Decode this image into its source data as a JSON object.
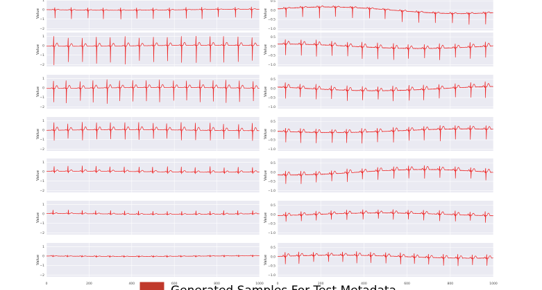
{
  "chart_data": {
    "type": "line",
    "description_layout": "14 stacked ECG-like line panels in 2 columns",
    "legend": {
      "label": "Generated Samples For Test Metadata",
      "color": "#c0392b",
      "placement": "bottom-center"
    },
    "line_color": "#ee2222",
    "grid": true,
    "left_column": {
      "ylabel": "Value",
      "xlim": [
        0,
        1000
      ],
      "x_ticks": [
        "0",
        "200",
        "400",
        "600",
        "800",
        "1000"
      ],
      "y_ticks": [
        "1",
        "0",
        "−1",
        "−2"
      ],
      "ylim": [
        -2.2,
        1.4
      ],
      "panels": [
        {
          "beats": 13,
          "r_amp": 0.25,
          "s_amp": -0.9,
          "t_amp": 0.05,
          "wander": 0.05
        },
        {
          "beats": 15,
          "r_amp": 0.95,
          "s_amp": -1.8,
          "t_amp": 0.3,
          "wander": 0.05
        },
        {
          "beats": 16,
          "r_amp": 0.8,
          "s_amp": -1.5,
          "t_amp": 0.3,
          "wander": 0.05
        },
        {
          "beats": 15,
          "r_amp": 0.75,
          "s_amp": -1.0,
          "t_amp": 0.3,
          "wander": 0.05
        },
        {
          "beats": 15,
          "r_amp": 0.55,
          "s_amp": -0.2,
          "t_amp": 0.15,
          "wander": 0.05
        },
        {
          "beats": 15,
          "r_amp": 0.35,
          "s_amp": -0.1,
          "t_amp": 0.08,
          "wander": 0.04
        },
        {
          "beats": 15,
          "r_amp": 0.08,
          "s_amp": -0.06,
          "t_amp": 0.03,
          "wander": 0.03
        }
      ]
    },
    "right_column": {
      "ylabel": "Value",
      "xlim": [
        0,
        1000
      ],
      "x_ticks": [
        "0",
        "200",
        "400",
        "600",
        "800",
        "1000"
      ],
      "y_ticks": [
        "0.5",
        "0.0",
        "−0.5",
        "−1.0"
      ],
      "ylim": [
        -1.1,
        0.75
      ],
      "panels": [
        {
          "beats": 13,
          "r_amp": 0.05,
          "s_amp": -0.55,
          "t_amp": 0.05,
          "wander": 0.18
        },
        {
          "beats": 14,
          "r_amp": 0.25,
          "s_amp": -0.6,
          "t_amp": 0.15,
          "wander": 0.12
        },
        {
          "beats": 14,
          "r_amp": 0.25,
          "s_amp": -0.55,
          "t_amp": 0.15,
          "wander": 0.12
        },
        {
          "beats": 14,
          "r_amp": 0.2,
          "s_amp": -0.6,
          "t_amp": 0.15,
          "wander": 0.1
        },
        {
          "beats": 14,
          "r_amp": 0.2,
          "s_amp": -0.45,
          "t_amp": 0.15,
          "wander": 0.15
        },
        {
          "beats": 14,
          "r_amp": 0.2,
          "s_amp": -0.35,
          "t_amp": 0.12,
          "wander": 0.08
        },
        {
          "beats": 15,
          "r_amp": 0.2,
          "s_amp": -0.4,
          "t_amp": 0.12,
          "wander": 0.08
        }
      ]
    }
  }
}
